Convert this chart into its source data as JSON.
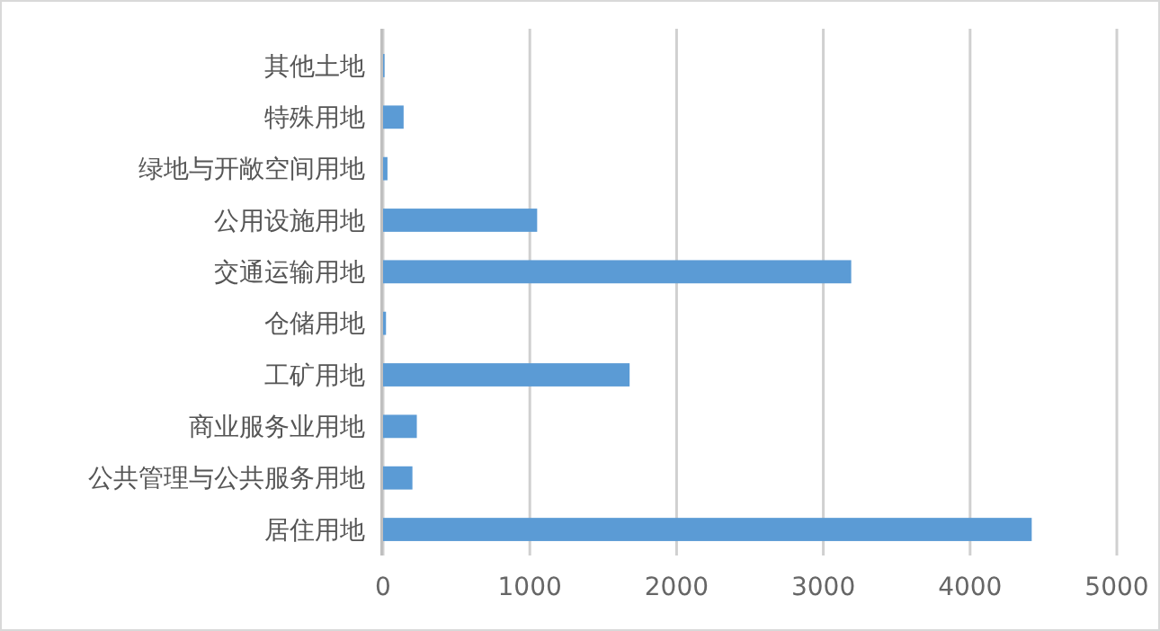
{
  "chart_data": {
    "type": "bar",
    "orientation": "horizontal",
    "categories": [
      "其他土地",
      "特殊用地",
      "绿地与开敞空间用地",
      "公用设施用地",
      "交通运输用地",
      "仓储用地",
      "工矿用地",
      "商业服务业用地",
      "公共管理与公共服务用地",
      "居住用地"
    ],
    "values": [
      10,
      140,
      30,
      1050,
      3190,
      20,
      1680,
      230,
      200,
      4420
    ],
    "color": "#5b9bd5",
    "xlim": [
      0,
      5000
    ],
    "xticks": [
      0,
      1000,
      2000,
      3000,
      4000,
      5000
    ],
    "grid": "x"
  }
}
